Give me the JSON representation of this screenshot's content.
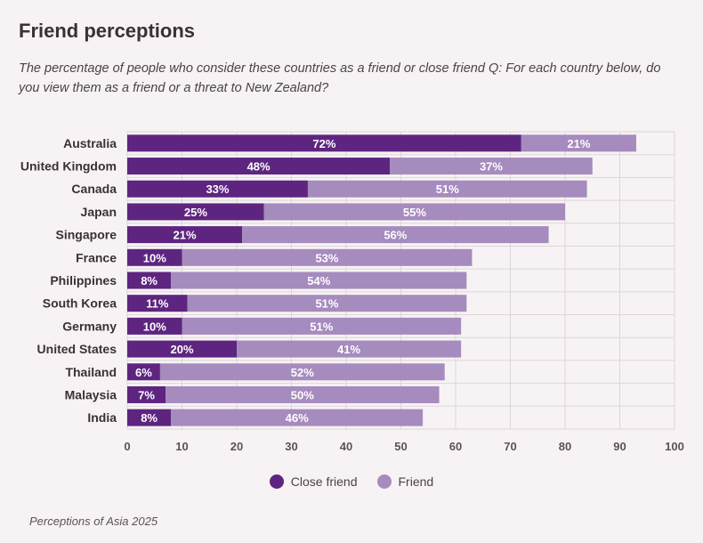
{
  "header": {
    "title": "Friend perceptions",
    "subtitle": "The percentage of people who consider these countries as a friend or close friend Q: For each country below, do you view them as a friend or a threat to New Zealand?"
  },
  "footer": {
    "source": "Perceptions of Asia 2025"
  },
  "colors": {
    "close_friend": "#5e2580",
    "friend": "#a68bbe",
    "grid": "#dcd6da",
    "axis_text": "#5a5258"
  },
  "chart_data": {
    "type": "bar",
    "orientation": "horizontal",
    "stacked": true,
    "categories": [
      "Australia",
      "United Kingdom",
      "Canada",
      "Japan",
      "Singapore",
      "France",
      "Philippines",
      "South Korea",
      "Germany",
      "United States",
      "Thailand",
      "Malaysia",
      "India"
    ],
    "series": [
      {
        "name": "Close friend",
        "values": [
          72,
          48,
          33,
          25,
          21,
          10,
          8,
          11,
          10,
          20,
          6,
          7,
          8
        ]
      },
      {
        "name": "Friend",
        "values": [
          21,
          37,
          51,
          55,
          56,
          53,
          54,
          51,
          51,
          41,
          52,
          50,
          46
        ]
      }
    ],
    "value_labels": [
      [
        "72%",
        "48%",
        "33%",
        "25%",
        "21%",
        "10%",
        "8%",
        "11%",
        "10%",
        "20%",
        "6%",
        "7%",
        "8%"
      ],
      [
        "21%",
        "37%",
        "51%",
        "55%",
        "56%",
        "53%",
        "54%",
        "51%",
        "51%",
        "41%",
        "52%",
        "50%",
        "46%"
      ]
    ],
    "xlim": [
      0,
      100
    ],
    "xticks": [
      0,
      10,
      20,
      30,
      40,
      50,
      60,
      70,
      80,
      90,
      100
    ],
    "grid": true,
    "legend_position": "bottom"
  }
}
